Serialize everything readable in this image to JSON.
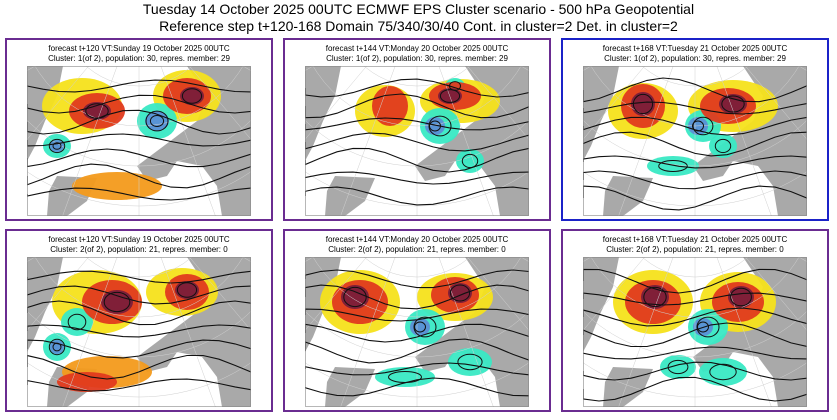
{
  "header": {
    "line1": "Tuesday 14 October 2025 00UTC ECMWF EPS Cluster scenario - 500 hPa Geopotential",
    "line2": "Reference step t+120-168 Domain 75/340/30/40 Cont. in cluster=2 Det. in cluster=2"
  },
  "colors": {
    "cluster_border": "#6a2c91",
    "highlight_border": "#1b22c8",
    "land": "#a9a9a9",
    "ocean": "#ffffff",
    "positive_strong": "#7a1e3a",
    "positive_mid": "#e03a1e",
    "positive_weak": "#f39a1b",
    "positive_faint": "#f6e21b",
    "negative_weak": "#39e9c4",
    "negative_mid": "#2fc27e",
    "negative_strong": "#5b8fd6"
  },
  "panels": [
    {
      "line1": "forecast t+120 VT:Sunday 19 October 2025 00UTC",
      "line2": "Cluster: 1(of 2), population: 30, repres. member: 29",
      "highlighted": false
    },
    {
      "line1": "forecast t+144 VT:Monday 20 October 2025 00UTC",
      "line2": "Cluster: 1(of 2), population: 30, repres. member: 29",
      "highlighted": false
    },
    {
      "line1": "forecast t+168 VT:Tuesday 21 October 2025 00UTC",
      "line2": "Cluster: 1(of 2), population: 30, repres. member: 29",
      "highlighted": true
    },
    {
      "line1": "forecast t+120 VT:Sunday 19 October 2025 00UTC",
      "line2": "Cluster: 2(of 2), population: 21, repres. member: 0",
      "highlighted": false
    },
    {
      "line1": "forecast t+144 VT:Monday 20 October 2025 00UTC",
      "line2": "Cluster: 2(of 2), population: 21, repres. member: 0",
      "highlighted": false
    },
    {
      "line1": "forecast t+168 VT:Tuesday 21 October 2025 00UTC",
      "line2": "Cluster: 2(of 2), population: 21, repres. member: 0",
      "highlighted": false
    }
  ]
}
